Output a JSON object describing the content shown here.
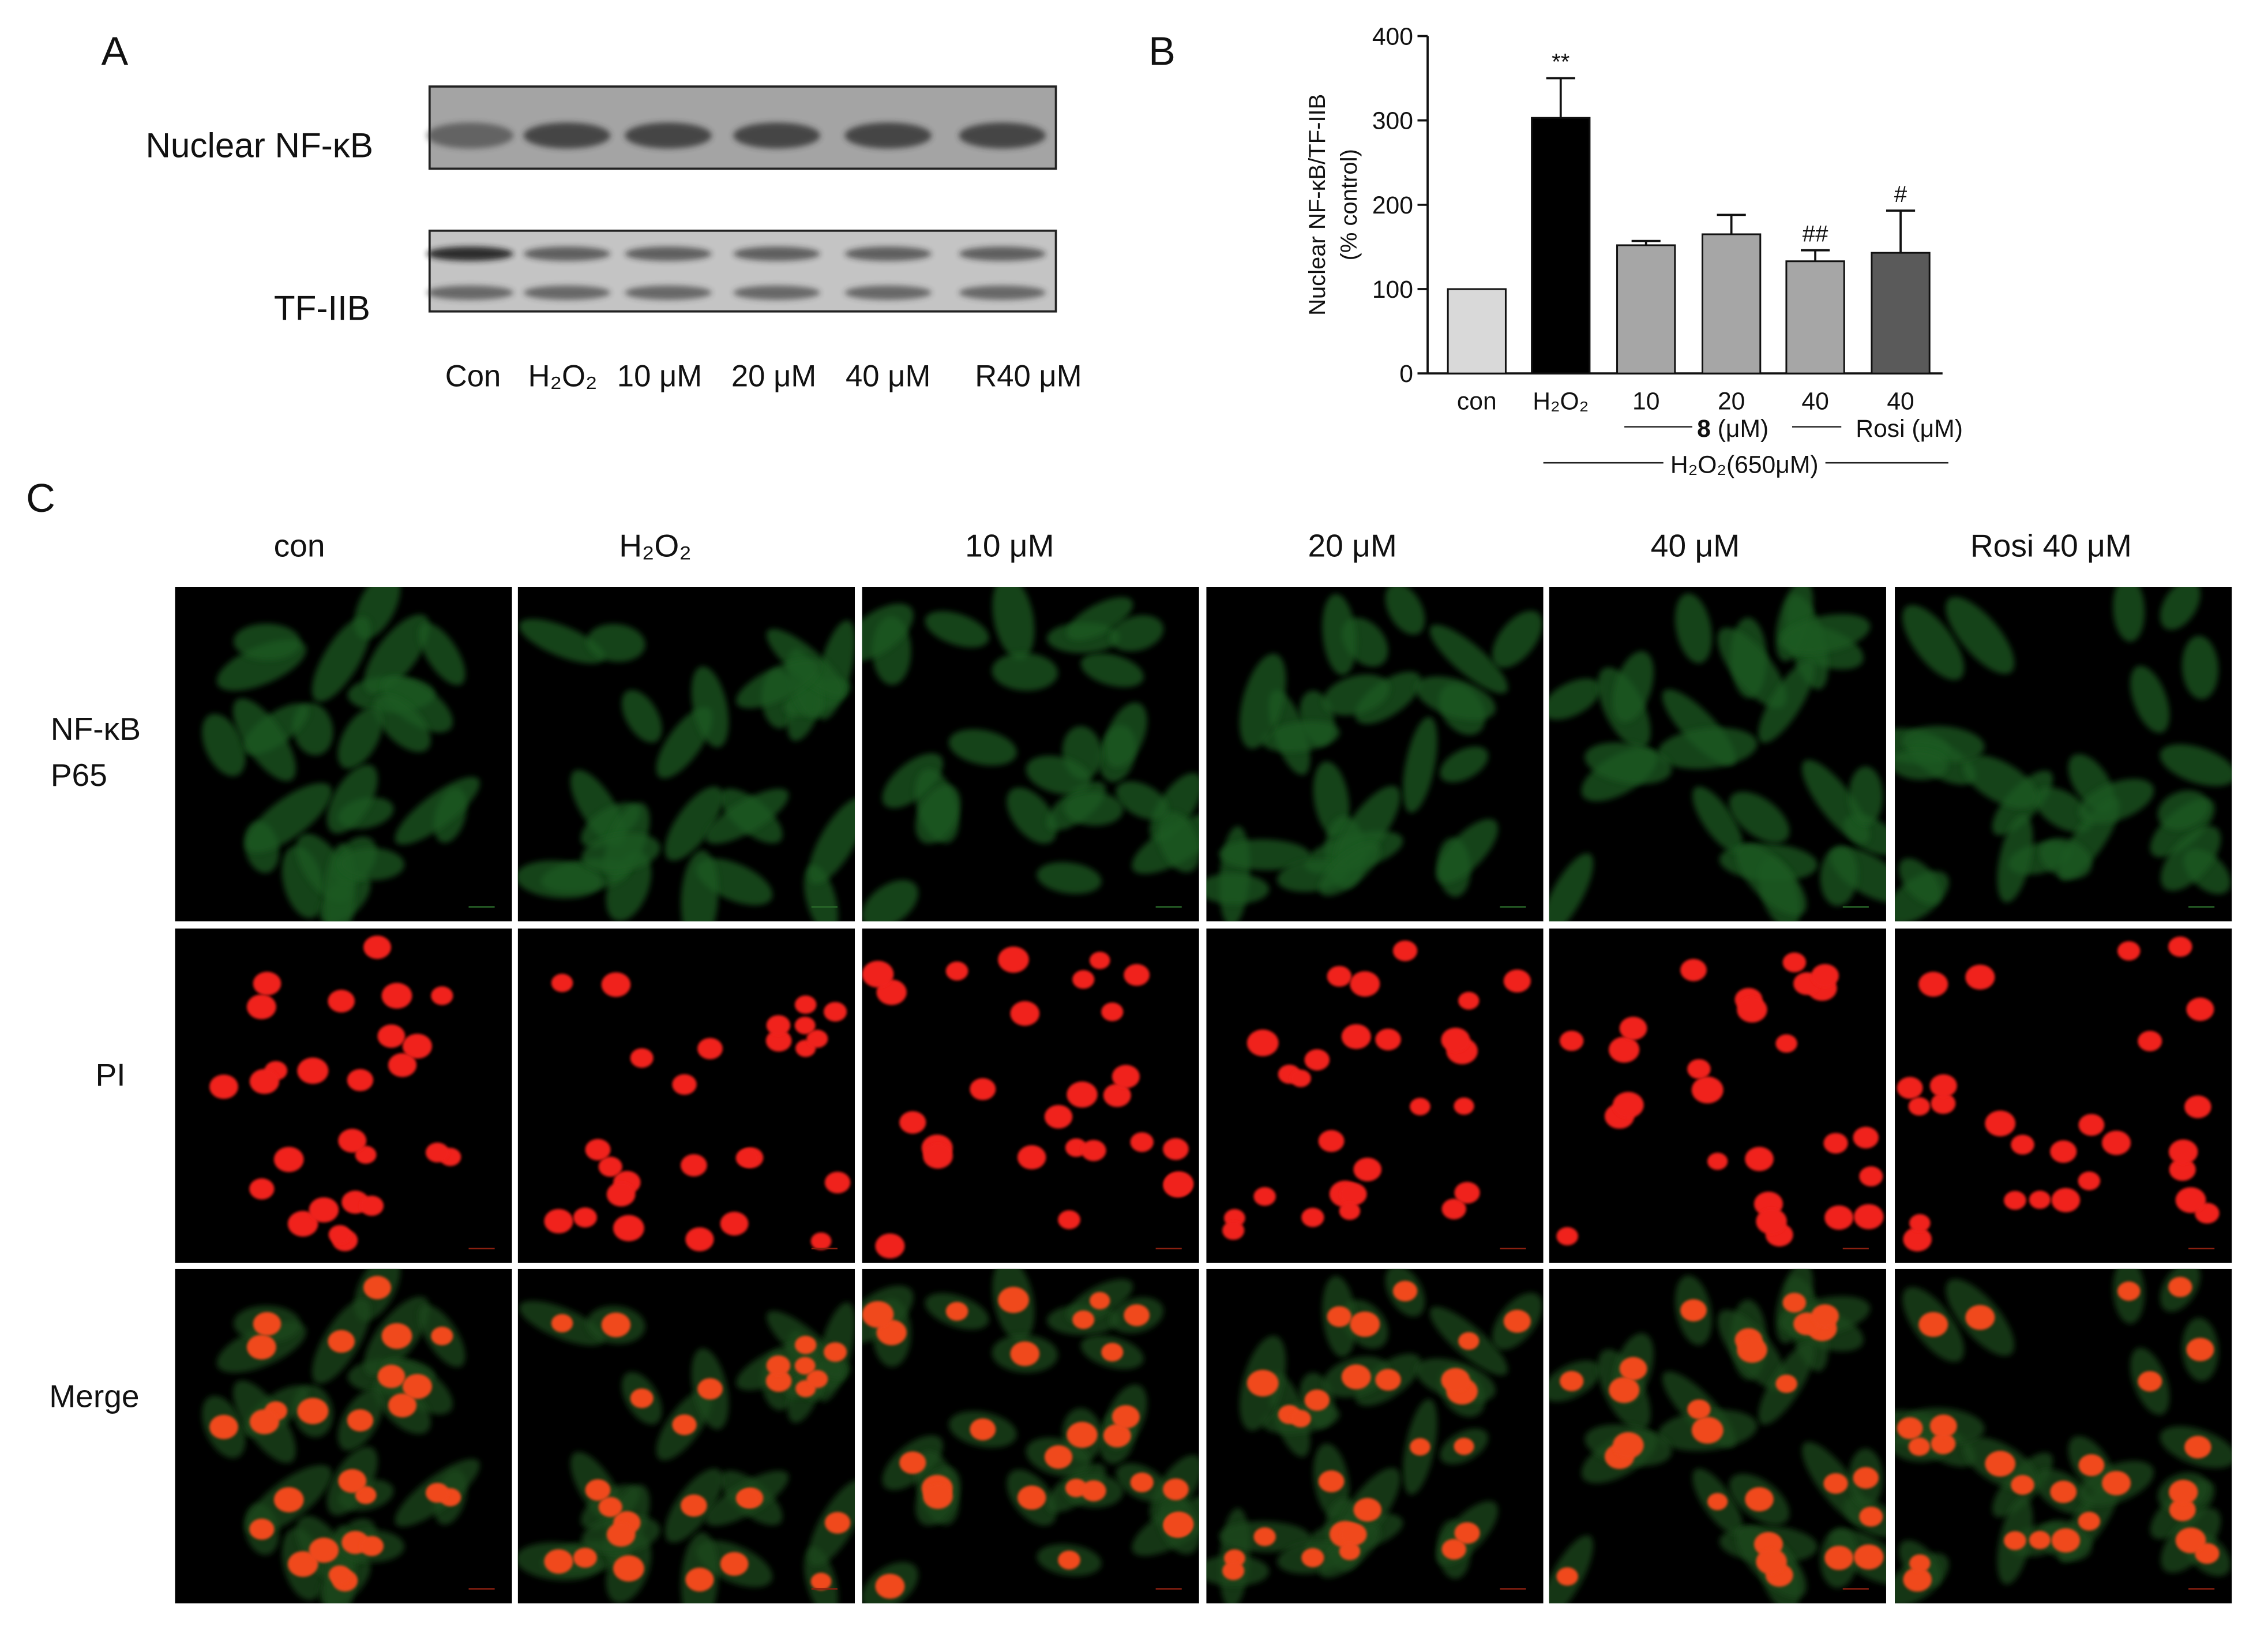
{
  "panel_labels": [
    "A",
    "B",
    "C"
  ],
  "blot": {
    "row_labels": [
      "Nuclear NF-κB",
      "TF-IIB"
    ],
    "lane_labels": [
      "Con",
      "H₂O₂",
      "10 μM",
      "20 μM",
      "40 μM",
      "R40 μM"
    ]
  },
  "chart_data": {
    "type": "bar",
    "y_label_lines": [
      "Nuclear NF-κB/TF-IIB",
      "(% control)"
    ],
    "categories": [
      "con",
      "H₂O₂",
      "10",
      "20",
      "40",
      "40"
    ],
    "values": [
      100,
      303,
      152,
      165,
      133,
      143
    ],
    "errors": [
      0,
      47,
      5,
      23,
      13,
      50
    ],
    "colors": [
      "#d9d9d9",
      "#000000",
      "#a6a6a6",
      "#a6a6a6",
      "#a6a6a6",
      "#5a5a5a"
    ],
    "annotations": [
      {
        "index": 1,
        "text": "**"
      },
      {
        "index": 4,
        "text": "##"
      },
      {
        "index": 5,
        "text": "#"
      }
    ],
    "groups": [
      {
        "compound": "8",
        "unit": "(μM)"
      },
      {
        "compound": "Rosi",
        "unit": "(μM)"
      }
    ],
    "treatment_label": "H₂O₂(650μM)",
    "ylim": [
      0,
      400
    ],
    "yticks": [
      0,
      100,
      200,
      300,
      400
    ]
  },
  "microscopy": {
    "columns": [
      "con",
      "H₂O₂",
      "10 μM",
      "20 μM",
      "40 μM",
      "Rosi 40 μM"
    ],
    "rows": [
      [
        "NF-κB",
        "P65"
      ],
      [
        "PI"
      ],
      [
        "Merge"
      ]
    ]
  }
}
